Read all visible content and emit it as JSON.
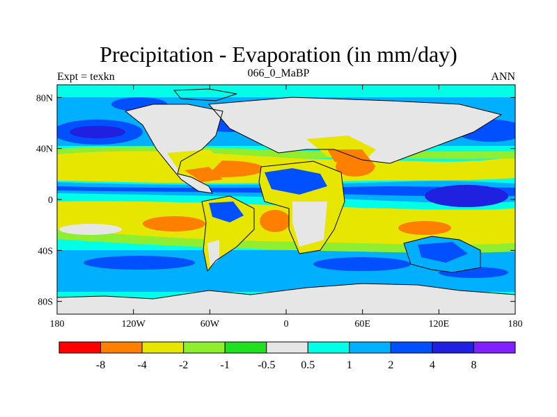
{
  "title": "Precipitation - Evaporation (in mm/day)",
  "subtitle": "066_0_MaBP",
  "left_label": "Expt = texkn",
  "right_label": "ANN",
  "y_ticks": [
    {
      "lat": 80,
      "label": "80N"
    },
    {
      "lat": 40,
      "label": "40N"
    },
    {
      "lat": 0,
      "label": "0"
    },
    {
      "lat": -40,
      "label": "40S"
    },
    {
      "lat": -80,
      "label": "80S"
    }
  ],
  "x_ticks": [
    {
      "lon": -180,
      "label": "180"
    },
    {
      "lon": -120,
      "label": "120W"
    },
    {
      "lon": -60,
      "label": "60W"
    },
    {
      "lon": 0,
      "label": "0"
    },
    {
      "lon": 60,
      "label": "60E"
    },
    {
      "lon": 120,
      "label": "120E"
    },
    {
      "lon": 180,
      "label": "180"
    }
  ],
  "colorbar": {
    "colors": [
      "#ff0000",
      "#ff8000",
      "#e6e600",
      "#90ee30",
      "#20e020",
      "#e6e6e6",
      "#00ffe6",
      "#00b0ff",
      "#0050ff",
      "#2020e0",
      "#8020ff"
    ],
    "labels": [
      "-8",
      "-4",
      "-2",
      "-1",
      "-0.5",
      "0.5",
      "1",
      "2",
      "4",
      "8"
    ]
  },
  "colors": {
    "neutral": "#e6e6e6",
    "light_cyan": "#00ffe6",
    "light_blue": "#00b0ff",
    "blue": "#0050ff",
    "dark_blue": "#2020e0",
    "green": "#20e020",
    "light_green": "#90ee30",
    "yellow": "#e6e600",
    "orange": "#ff8000"
  }
}
